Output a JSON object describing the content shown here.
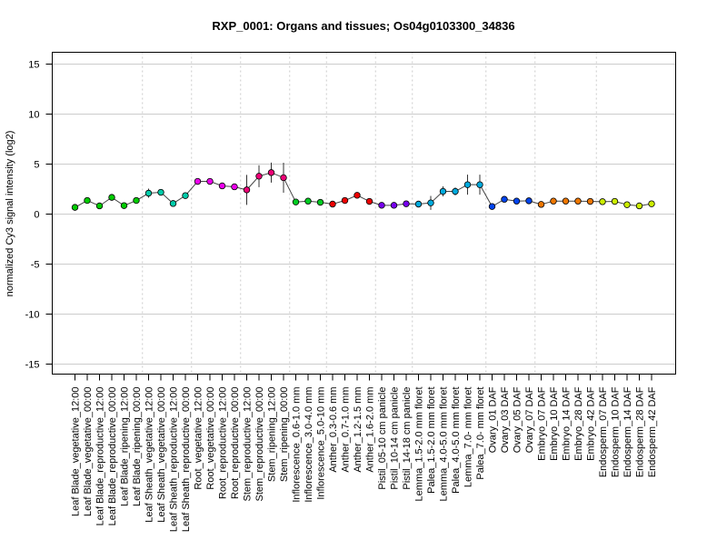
{
  "chart_data": {
    "type": "line",
    "title": "RXP_0001: Organs and tissues; Os04g0103300_34836",
    "xlabel": "",
    "ylabel": "normalized Cy3 signal intensity (log2)",
    "ylim": [
      -16,
      16
    ],
    "yticks": [
      -15,
      -10,
      -5,
      0,
      5,
      10,
      15
    ],
    "grid": true,
    "categories": [
      "Leaf Blade_vegetative_12:00",
      "Leaf Blade_vegetative_00:00",
      "Leaf Blade_reproductive_12:00",
      "Leaf Blade_reproductive_00:00",
      "Leaf Blade_ripening_12:00",
      "Leaf Blade_ripening_00:00",
      "Leaf Sheath_vegetative_12:00",
      "Leaf Sheath_vegetative_00:00",
      "Leaf Sheath_reproductive_12:00",
      "Leaf Sheath_reproductive_00:00",
      "Root_vegetative_12:00",
      "Root_vegetative_00:00",
      "Root_reproductive_12:00",
      "Root_reproductive_00:00",
      "Stem_reproductive_12:00",
      "Stem_reproductive_00:00",
      "Stem_ripening_12:00",
      "Stem_ripening_00:00",
      "Inflorescence_0.6-1.0 mm",
      "Inflorescence_3.0-4.0 mm",
      "Inflorescence_5.0-10 mm",
      "Anther_0.3-0.6 mm",
      "Anther_0.7-1.0 mm",
      "Anther_1.2-1.5 mm",
      "Anther_1.6-2.0 mm",
      "Pistil_05-10 cm panicle",
      "Pistil_10-14 cm panicle",
      "Pistil_14-18 cm panicle",
      "Lemma_1.5-2.0 mm floret",
      "Palea_1.5-2.0 mm floret",
      "Lemma_4.0-5.0 mm floret",
      "Palea_4.0-5.0 mm floret",
      "Lemma_7.0- mm floret",
      "Palea_7.0- mm floret",
      "Ovary_01 DAF",
      "Ovary_03 DAF",
      "Ovary_05 DAF",
      "Ovary_07 DAF",
      "Embryo_07 DAF",
      "Embryo_10 DAF",
      "Embryo_14 DAF",
      "Embryo_28 DAF",
      "Embryo_42 DAF",
      "Endosperm_07 DAF",
      "Endosperm_10 DAF",
      "Endosperm_14 DAF",
      "Endosperm_28 DAF",
      "Endosperm_42 DAF"
    ],
    "values": [
      0.67,
      1.36,
      0.82,
      1.67,
      0.85,
      1.36,
      2.09,
      2.18,
      1.06,
      1.85,
      3.27,
      3.27,
      2.82,
      2.73,
      2.42,
      3.79,
      4.15,
      3.64,
      1.21,
      1.3,
      1.18,
      1.0,
      1.36,
      1.88,
      1.27,
      0.88,
      0.88,
      1.03,
      1.0,
      1.12,
      2.27,
      2.27,
      2.94,
      2.94,
      0.76,
      1.48,
      1.3,
      1.33,
      0.97,
      1.3,
      1.3,
      1.3,
      1.27,
      1.24,
      1.27,
      0.94,
      0.82,
      1.03
    ],
    "errors": [
      0.1,
      0.25,
      0.1,
      0.3,
      0.1,
      0.2,
      0.45,
      0.3,
      0.1,
      0.3,
      0.1,
      0.1,
      0.1,
      0.1,
      1.5,
      1.1,
      1.0,
      1.5,
      0.1,
      0.1,
      0.1,
      0.1,
      0.1,
      0.2,
      0.2,
      0.2,
      0.2,
      0.2,
      0.2,
      0.7,
      0.5,
      0.4,
      1.0,
      1.0,
      0.2,
      0.1,
      0.1,
      0.1,
      0.1,
      0.1,
      0.1,
      0.1,
      0.1,
      0.1,
      0.2,
      0.1,
      0.1,
      0.1
    ],
    "groups": [
      {
        "name": "Leaf Blade",
        "count": 6,
        "color": "#00cc00"
      },
      {
        "name": "Leaf Sheath",
        "count": 4,
        "color": "#00ccaa"
      },
      {
        "name": "Root",
        "count": 4,
        "color": "#ee00ee"
      },
      {
        "name": "Stem",
        "count": 4,
        "color": "#ee0077"
      },
      {
        "name": "Inflorescence",
        "count": 3,
        "color": "#00cc22"
      },
      {
        "name": "Anther",
        "count": 4,
        "color": "#ee0000"
      },
      {
        "name": "Pistil",
        "count": 3,
        "color": "#7700ee"
      },
      {
        "name": "Lemma/Palea",
        "count": 6,
        "color": "#00aadd"
      },
      {
        "name": "Ovary",
        "count": 4,
        "color": "#0044ee"
      },
      {
        "name": "Embryo",
        "count": 5,
        "color": "#ee7700"
      },
      {
        "name": "Endosperm",
        "count": 5,
        "color": "#ccee00"
      }
    ]
  }
}
